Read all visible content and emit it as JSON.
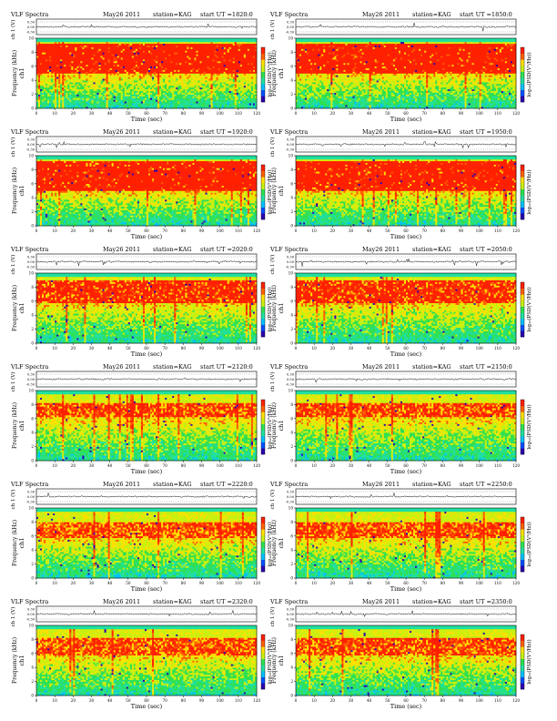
{
  "chart_data": {
    "type": "heatmap",
    "grid": {
      "columns": 2,
      "rows": 6
    },
    "title_left": "VLF Spectra",
    "date": "May26 2011",
    "station": "station=KAG",
    "ut_prefix": "start  UT  =",
    "panel_label": "ch1",
    "top_ylabel": "ch 1 (V)",
    "top_yticks": [
      "0.30",
      "0.00",
      "-0.30"
    ],
    "top_ylim": [
      -0.3,
      0.3
    ],
    "ylabel": "Frequency  (kHz)",
    "yticks": [
      0,
      2,
      4,
      6,
      8,
      10
    ],
    "ylim": [
      0,
      10
    ],
    "xlabel": "Time  (sec)",
    "xticks_left": [
      0,
      10,
      20,
      30,
      40,
      50,
      60,
      70,
      80,
      90,
      100,
      110,
      120
    ],
    "xticks_right": [
      0,
      10,
      20,
      30,
      40,
      50,
      60,
      70,
      80,
      90,
      100,
      110,
      120
    ],
    "xlim": [
      0,
      120
    ],
    "colorbar_label": "log₁₀(PSD(V²/Hz))",
    "colormap": [
      "#2b00b0",
      "#0050ff",
      "#00c0ff",
      "#20e0a0",
      "#30e050",
      "#c8f010",
      "#ffe000",
      "#ff6000",
      "#ff2000"
    ],
    "panels": [
      {
        "start_ut": "1820:0",
        "red_top": 9.3,
        "red_bottom": 5.0,
        "intensity": 0.9
      },
      {
        "start_ut": "1850:0",
        "red_top": 9.3,
        "red_bottom": 5.0,
        "intensity": 0.9
      },
      {
        "start_ut": "1920:0",
        "red_top": 9.3,
        "red_bottom": 5.0,
        "intensity": 0.9
      },
      {
        "start_ut": "1950:0",
        "red_top": 9.3,
        "red_bottom": 5.0,
        "intensity": 0.9
      },
      {
        "start_ut": "2020:0",
        "red_top": 9.0,
        "red_bottom": 5.8,
        "intensity": 0.72
      },
      {
        "start_ut": "2050:0",
        "red_top": 9.0,
        "red_bottom": 5.8,
        "intensity": 0.7
      },
      {
        "start_ut": "2120:0",
        "red_top": 8.3,
        "red_bottom": 6.2,
        "intensity": 0.55
      },
      {
        "start_ut": "2150:0",
        "red_top": 8.3,
        "red_bottom": 6.2,
        "intensity": 0.55
      },
      {
        "start_ut": "2220:0",
        "red_top": 8.0,
        "red_bottom": 5.8,
        "intensity": 0.5
      },
      {
        "start_ut": "2250:0",
        "red_top": 8.0,
        "red_bottom": 5.8,
        "intensity": 0.5
      },
      {
        "start_ut": "2320:0",
        "red_top": 8.3,
        "red_bottom": 5.8,
        "intensity": 0.5
      },
      {
        "start_ut": "2350:0",
        "red_top": 8.3,
        "red_bottom": 5.8,
        "intensity": 0.5
      }
    ]
  }
}
